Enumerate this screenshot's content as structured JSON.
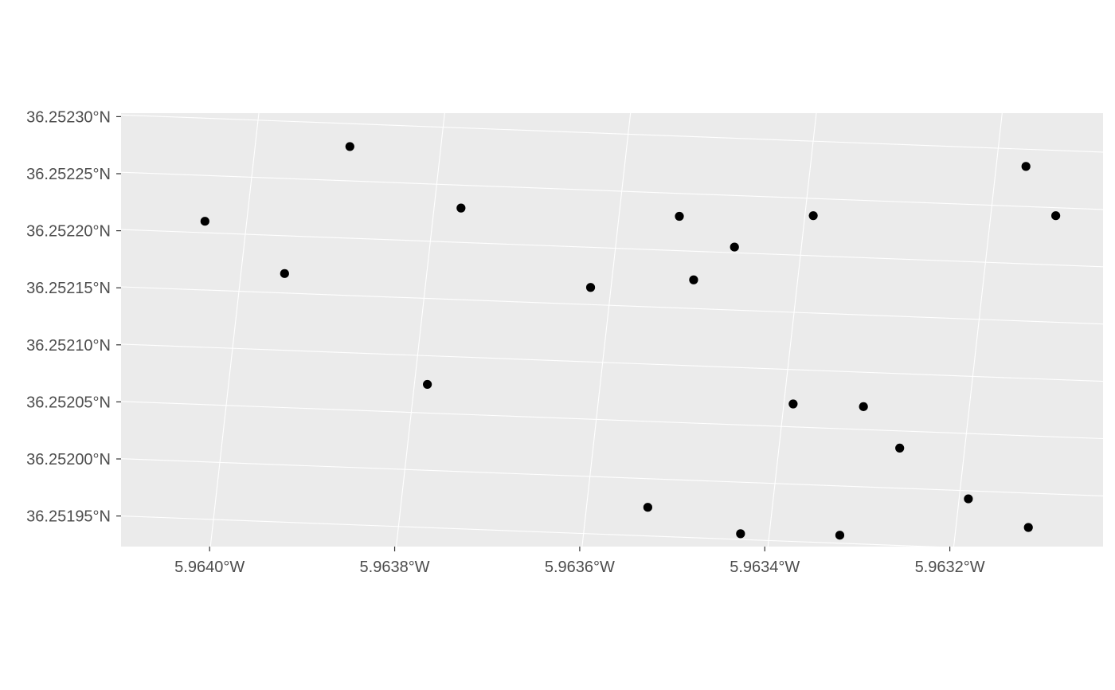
{
  "chart_data": {
    "type": "scatter",
    "title": "",
    "xlabel": "",
    "ylabel": "",
    "grid": true,
    "xlim": [
      5.9641,
      5.96309
    ],
    "ylim": [
      36.25192,
      36.25231
    ],
    "x_ticks": [
      {
        "value": 5.964,
        "label": "5.9640°W"
      },
      {
        "value": 5.9638,
        "label": "5.9638°W"
      },
      {
        "value": 5.9636,
        "label": "5.9636°W"
      },
      {
        "value": 5.9634,
        "label": "5.9634°W"
      },
      {
        "value": 5.9632,
        "label": "5.9632°W"
      }
    ],
    "y_ticks": [
      {
        "value": 36.2523,
        "label": "36.25230°N"
      },
      {
        "value": 36.25225,
        "label": "36.25225°N"
      },
      {
        "value": 36.2522,
        "label": "36.25220°N"
      },
      {
        "value": 36.25215,
        "label": "36.25215°N"
      },
      {
        "value": 36.2521,
        "label": "36.25210°N"
      },
      {
        "value": 36.25205,
        "label": "36.25205°N"
      },
      {
        "value": 36.252,
        "label": "36.25200°N"
      },
      {
        "value": 36.25195,
        "label": "36.25195°N"
      }
    ],
    "points": [
      {
        "lon": 5.964045,
        "lat": 36.25221
      },
      {
        "lon": 5.963953,
        "lat": 36.252167
      },
      {
        "lon": 5.963898,
        "lat": 36.25228
      },
      {
        "lon": 5.963771,
        "lat": 36.25223
      },
      {
        "lon": 5.963786,
        "lat": 36.252075
      },
      {
        "lon": 5.963622,
        "lat": 36.252165
      },
      {
        "lon": 5.963535,
        "lat": 36.25223
      },
      {
        "lon": 5.963512,
        "lat": 36.252175
      },
      {
        "lon": 5.963472,
        "lat": 36.252205
      },
      {
        "lon": 5.963391,
        "lat": 36.252235
      },
      {
        "lon": 5.96339,
        "lat": 36.25207
      },
      {
        "lon": 5.963314,
        "lat": 36.25207
      },
      {
        "lon": 5.96327,
        "lat": 36.252035
      },
      {
        "lon": 5.963534,
        "lat": 36.251975
      },
      {
        "lon": 5.963431,
        "lat": 36.251955
      },
      {
        "lon": 5.963324,
        "lat": 36.251957
      },
      {
        "lon": 5.96319,
        "lat": 36.251993
      },
      {
        "lon": 5.963168,
        "lat": 36.252285
      },
      {
        "lon": 5.96313,
        "lat": 36.252243
      },
      {
        "lon": 5.963122,
        "lat": 36.25197
      },
      {
        "lon": 5.963086,
        "lat": 36.251938
      }
    ],
    "style": {
      "panel_background": "#ebebeb",
      "grid_color": "#ffffff",
      "point_color": "#000000",
      "tick_label_color": "#4d4d4d",
      "tick_mark_color": "#333333"
    }
  }
}
